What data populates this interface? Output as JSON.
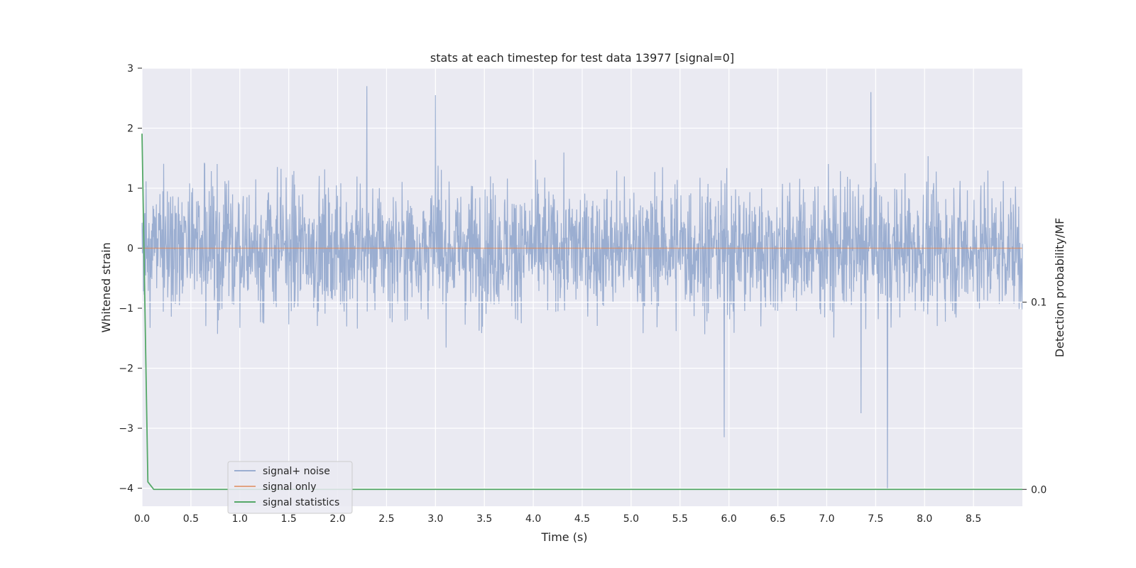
{
  "chart_data": {
    "type": "line",
    "title": "stats at each timestep for test data 13977 [signal=0]",
    "xlabel": "Time (s)",
    "ylabel": "Whitened strain",
    "y2label": "Detection probability/MF",
    "xlim": [
      0.0,
      9.0
    ],
    "ylim": [
      -4.3,
      3.0
    ],
    "y2lim": [
      -0.009,
      0.225
    ],
    "x_ticks": [
      "0.0",
      "0.5",
      "1.0",
      "1.5",
      "2.0",
      "2.5",
      "3.0",
      "3.5",
      "4.0",
      "4.5",
      "5.0",
      "5.5",
      "6.0",
      "6.5",
      "7.0",
      "7.5",
      "8.0",
      "8.5"
    ],
    "y_ticks": [
      "3",
      "2",
      "1",
      "0",
      "−1",
      "−2",
      "−3",
      "−4"
    ],
    "y2_ticks": [
      "0.1",
      "0.0"
    ],
    "grid": true,
    "legend_position": "lower-left",
    "series": [
      {
        "name": "signal+ noise",
        "color": "#4c72b0",
        "axis": "left",
        "description_peaks": {
          "typical_range": [
            -1.5,
            1.5
          ],
          "notable_max": [
            [
              2.3,
              2.7
            ],
            [
              3.0,
              2.55
            ],
            [
              7.45,
              2.6
            ]
          ],
          "notable_min": [
            [
              5.95,
              -3.15
            ],
            [
              7.62,
              -4.0
            ],
            [
              7.35,
              -2.75
            ]
          ]
        }
      },
      {
        "name": "signal only",
        "color": "#dd8452",
        "axis": "left",
        "x": [
          0.0,
          9.0
        ],
        "y": [
          0.0,
          0.0
        ]
      },
      {
        "name": "signal statistics",
        "color": "#55a868",
        "axis": "right",
        "x": [
          0.0,
          0.06,
          0.12,
          0.18,
          9.0
        ],
        "y": [
          0.19,
          0.004,
          0.0,
          0.0,
          0.0
        ]
      }
    ],
    "reference_line": {
      "axis": "right",
      "value": 0.1
    }
  }
}
